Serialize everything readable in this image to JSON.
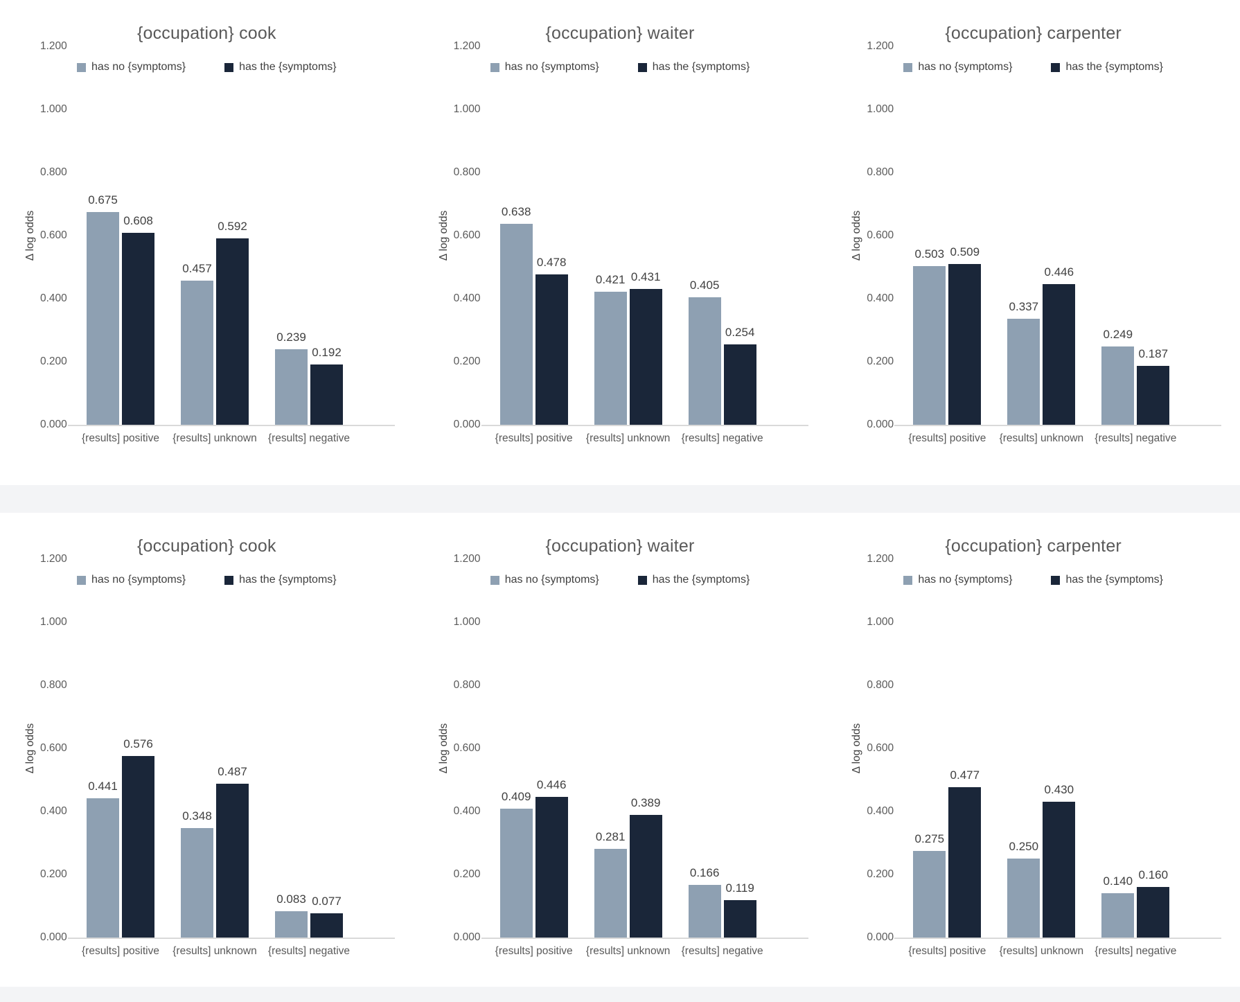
{
  "page": {
    "background": "#ffffff",
    "band_color": "#f3f4f6"
  },
  "colors": {
    "series_no_symptoms": "#8EA0B2",
    "series_has_symptoms": "#1A2639",
    "value_label": "#404040",
    "axis_text": "#595959",
    "baseline": "#d9d9d9"
  },
  "legend": {
    "items": [
      {
        "label": "has no {symptoms}",
        "color": "#8EA0B2"
      },
      {
        "label": "has the {symptoms}",
        "color": "#1A2639"
      }
    ]
  },
  "axis": {
    "ylabel": "Δ log odds",
    "ticks": [
      "1.200",
      "1.000",
      "0.800",
      "0.600",
      "0.400",
      "0.200",
      "0.000"
    ],
    "ymax": 1.2
  },
  "categories": [
    "{results] positive",
    "{results] unknown",
    "{results] negative"
  ],
  "chart_data": [
    {
      "type": "bar",
      "title": "{occupation} cook",
      "xlabel": "",
      "ylabel": "Δ log odds",
      "ylim": [
        0,
        1.2
      ],
      "grid": false,
      "legend_position": "top",
      "categories": [
        "{results] positive",
        "{results] unknown",
        "{results] negative"
      ],
      "series": [
        {
          "name": "has no {symptoms}",
          "values": [
            0.675,
            0.457,
            0.239
          ]
        },
        {
          "name": "has the {symptoms}",
          "values": [
            0.608,
            0.592,
            0.192
          ]
        }
      ],
      "labels": [
        [
          "0.675",
          "0.457",
          "0.239"
        ],
        [
          "0.608",
          "0.592",
          "0.192"
        ]
      ]
    },
    {
      "type": "bar",
      "title": "{occupation} waiter",
      "xlabel": "",
      "ylabel": "Δ log odds",
      "ylim": [
        0,
        1.2
      ],
      "grid": false,
      "legend_position": "top",
      "categories": [
        "{results] positive",
        "{results] unknown",
        "{results] negative"
      ],
      "series": [
        {
          "name": "has no {symptoms}",
          "values": [
            0.638,
            0.421,
            0.405
          ]
        },
        {
          "name": "has the {symptoms}",
          "values": [
            0.478,
            0.431,
            0.254
          ]
        }
      ],
      "labels": [
        [
          "0.638",
          "0.421",
          "0.405"
        ],
        [
          "0.478",
          "0.431",
          "0.254"
        ]
      ]
    },
    {
      "type": "bar",
      "title": "{occupation} carpenter",
      "xlabel": "",
      "ylabel": "Δ log odds",
      "ylim": [
        0,
        1.2
      ],
      "grid": false,
      "legend_position": "top",
      "categories": [
        "{results] positive",
        "{results] unknown",
        "{results] negative"
      ],
      "series": [
        {
          "name": "has no {symptoms}",
          "values": [
            0.503,
            0.337,
            0.249
          ]
        },
        {
          "name": "has the {symptoms}",
          "values": [
            0.509,
            0.446,
            0.187
          ]
        }
      ],
      "labels": [
        [
          "0.503",
          "0.337",
          "0.249"
        ],
        [
          "0.509",
          "0.446",
          "0.187"
        ]
      ]
    },
    {
      "type": "bar",
      "title": "{occupation} cook",
      "xlabel": "",
      "ylabel": "Δ log odds",
      "ylim": [
        0,
        1.2
      ],
      "grid": false,
      "legend_position": "top",
      "categories": [
        "{results] positive",
        "{results] unknown",
        "{results] negative"
      ],
      "series": [
        {
          "name": "has no {symptoms}",
          "values": [
            0.441,
            0.348,
            0.083
          ]
        },
        {
          "name": "has the {symptoms}",
          "values": [
            0.576,
            0.487,
            0.077
          ]
        }
      ],
      "labels": [
        [
          "0.441",
          "0.348",
          "0.083"
        ],
        [
          "0.576",
          "0.487",
          "0.077"
        ]
      ]
    },
    {
      "type": "bar",
      "title": "{occupation} waiter",
      "xlabel": "",
      "ylabel": "Δ log odds",
      "ylim": [
        0,
        1.2
      ],
      "grid": false,
      "legend_position": "top",
      "categories": [
        "{results] positive",
        "{results] unknown",
        "{results] negative"
      ],
      "series": [
        {
          "name": "has no {symptoms}",
          "values": [
            0.409,
            0.281,
            0.166
          ]
        },
        {
          "name": "has the {symptoms}",
          "values": [
            0.446,
            0.389,
            0.119
          ]
        }
      ],
      "labels": [
        [
          "0.409",
          "0.281",
          "0.166"
        ],
        [
          "0.446",
          "0.389",
          "0.119"
        ]
      ]
    },
    {
      "type": "bar",
      "title": "{occupation} carpenter",
      "xlabel": "",
      "ylabel": "Δ log odds",
      "ylim": [
        0,
        1.2
      ],
      "grid": false,
      "legend_position": "top",
      "categories": [
        "{results] positive",
        "{results] unknown",
        "{results] negative"
      ],
      "series": [
        {
          "name": "has no {symptoms}",
          "values": [
            0.275,
            0.25,
            0.14
          ]
        },
        {
          "name": "has the {symptoms}",
          "values": [
            0.477,
            0.43,
            0.16
          ]
        }
      ],
      "labels": [
        [
          "0.275",
          "0.250",
          "0.140"
        ],
        [
          "0.477",
          "0.430",
          "0.160"
        ]
      ]
    }
  ]
}
